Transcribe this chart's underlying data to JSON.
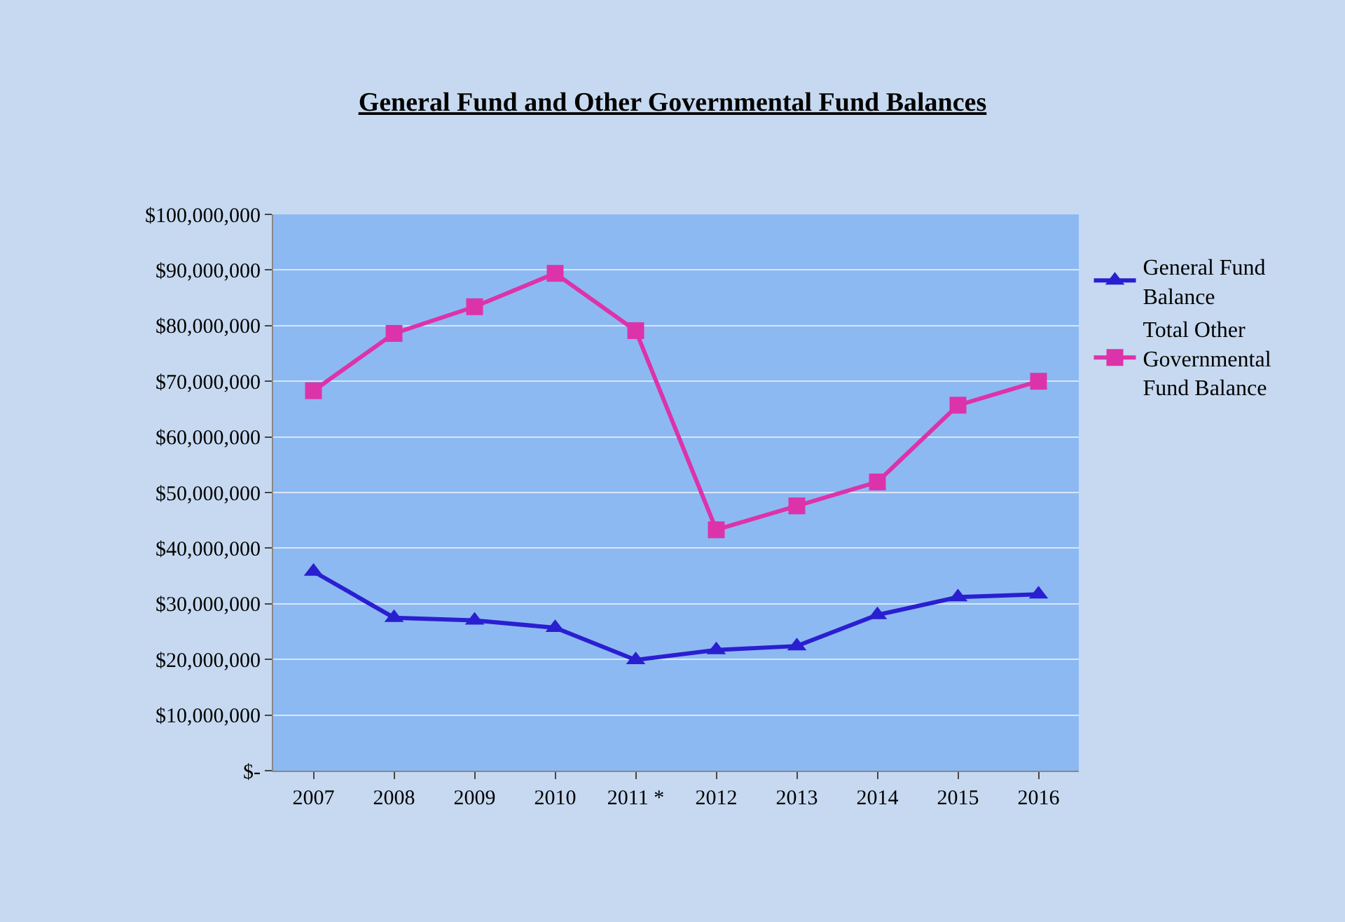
{
  "chart_data": {
    "type": "line",
    "title": "General Fund and Other Governmental Fund Balances",
    "categories": [
      "2007",
      "2008",
      "2009",
      "2010",
      "2011 *",
      "2012",
      "2013",
      "2014",
      "2015",
      "2016"
    ],
    "series": [
      {
        "name": "General Fund Balance",
        "color": "#2a1fd0",
        "marker": "triangle",
        "values": [
          35800000,
          27500000,
          27000000,
          25700000,
          19900000,
          21700000,
          22400000,
          28000000,
          31200000,
          31700000
        ]
      },
      {
        "name": "Total Other Governmental Fund Balance",
        "color": "#dd33aa",
        "marker": "square",
        "values": [
          68300000,
          78600000,
          83400000,
          89400000,
          79100000,
          43300000,
          47600000,
          51900000,
          65700000,
          70000000
        ]
      }
    ],
    "ylim": [
      0,
      100000000
    ],
    "yticks": [
      {
        "value": 0,
        "label": "$-"
      },
      {
        "value": 10000000,
        "label": "$10,000,000"
      },
      {
        "value": 20000000,
        "label": "$20,000,000"
      },
      {
        "value": 30000000,
        "label": "$30,000,000"
      },
      {
        "value": 40000000,
        "label": "$40,000,000"
      },
      {
        "value": 50000000,
        "label": "$50,000,000"
      },
      {
        "value": 60000000,
        "label": "$60,000,000"
      },
      {
        "value": 70000000,
        "label": "$70,000,000"
      },
      {
        "value": 80000000,
        "label": "$80,000,000"
      },
      {
        "value": 90000000,
        "label": "$90,000,000"
      },
      {
        "value": 100000000,
        "label": "$100,000,000"
      }
    ],
    "grid": "y",
    "legend": "right",
    "line_style": "solid"
  }
}
